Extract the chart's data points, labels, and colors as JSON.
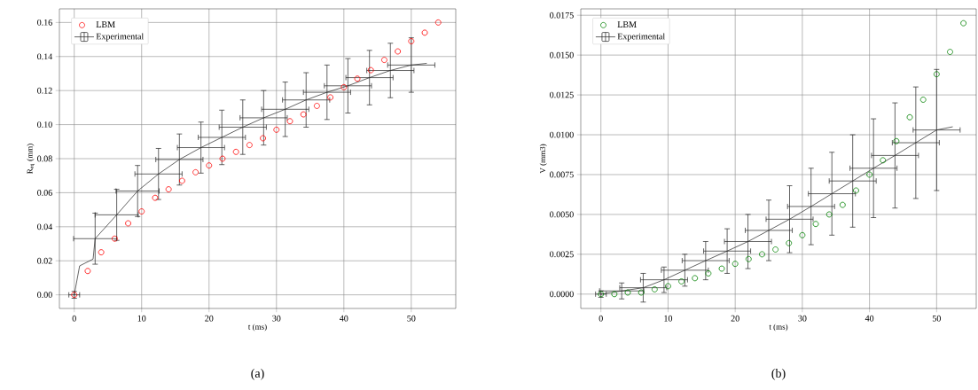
{
  "chart_data": [
    {
      "type": "scatter",
      "xlabel": "t (ms)",
      "ylabel": "R$_{eq}$ (mm)",
      "annotations": [
        "(a)"
      ],
      "grid": true,
      "legend": "top left",
      "xlim": [
        -2.2,
        56.6
      ],
      "ylim": [
        -0.008,
        0.168
      ],
      "xticks": [
        0,
        10,
        20,
        30,
        40,
        50
      ],
      "yticks": [
        {
          "value": 0,
          "label": "0.00"
        },
        {
          "value": 0.02,
          "label": "0.02"
        },
        {
          "value": 0.04,
          "label": "0.04"
        },
        {
          "value": 0.06,
          "label": "0.06"
        },
        {
          "value": 0.08,
          "label": "0.08"
        },
        {
          "value": 0.1,
          "label": "0.10"
        },
        {
          "value": 0.12,
          "label": "0.12"
        },
        {
          "value": 0.14,
          "label": "0.14"
        },
        {
          "value": 0.16,
          "label": "0.16"
        }
      ],
      "series": [
        {
          "name": "LBM",
          "marker": "circle",
          "color": "#ff0000",
          "x": [
            0,
            2,
            4,
            6,
            8,
            10,
            12,
            14,
            16,
            18,
            20,
            22,
            24,
            26,
            28,
            30,
            32,
            34,
            36,
            38,
            40,
            42,
            44,
            46,
            48,
            50,
            52,
            54
          ],
          "values": [
            0,
            0.014,
            0.025,
            0.033,
            0.042,
            0.049,
            0.057,
            0.062,
            0.067,
            0.072,
            0.076,
            0.08,
            0.084,
            0.088,
            0.092,
            0.097,
            0.102,
            0.106,
            0.111,
            0.116,
            0.122,
            0.127,
            0.132,
            0.138,
            0.143,
            0.149,
            0.154,
            0.16
          ]
        },
        {
          "name": "Experimental",
          "type": "line",
          "marker": "none",
          "line_style": "solid",
          "color": "#222222",
          "x": [
            0,
            0.8,
            2.8,
            3.1,
            6.3,
            9.4,
            12.5,
            15.6,
            18.8,
            21.9,
            25.0,
            28.1,
            31.3,
            34.4,
            37.5,
            40.6,
            43.8,
            46.9,
            50.0,
            52.3
          ],
          "values": [
            0,
            0.017,
            0.021,
            0.033,
            0.047,
            0.061,
            0.071,
            0.0795,
            0.0865,
            0.0925,
            0.0985,
            0.104,
            0.109,
            0.1145,
            0.119,
            0.1228,
            0.1276,
            0.1318,
            0.135,
            0.136
          ],
          "errors": [
            0.002,
            null,
            null,
            0.015,
            0.015,
            0.015,
            0.015,
            0.015,
            0.015,
            0.016,
            0.016,
            0.016,
            0.016,
            0.016,
            0.016,
            0.016,
            0.016,
            0.016,
            0.016,
            null
          ],
          "xerrors": [
            0.8,
            null,
            null,
            3.2,
            3.2,
            3.2,
            3.5,
            3.5,
            3.5,
            3.5,
            3.5,
            3.5,
            3.5,
            3.5,
            3.5,
            3.5,
            3.5,
            3.5,
            3.5,
            null
          ]
        }
      ]
    },
    {
      "type": "scatter",
      "xlabel": "t (ms)",
      "ylabel": "V (mm3)",
      "annotations": [
        "(b)"
      ],
      "grid": true,
      "legend": "top left",
      "xlim": [
        -3.0,
        55.9
      ],
      "ylim": [
        -0.0009,
        0.0179
      ],
      "xticks": [
        0,
        10,
        20,
        30,
        40,
        50
      ],
      "yticks": [
        {
          "value": 0,
          "label": "0.0000"
        },
        {
          "value": 0.0025,
          "label": "0.0025"
        },
        {
          "value": 0.005,
          "label": "0.0050"
        },
        {
          "value": 0.0075,
          "label": "0.0075"
        },
        {
          "value": 0.01,
          "label": "0.0100"
        },
        {
          "value": 0.0125,
          "label": "0.0125"
        },
        {
          "value": 0.015,
          "label": "0.0150"
        },
        {
          "value": 0.0175,
          "label": "0.0175"
        }
      ],
      "series": [
        {
          "name": "LBM",
          "marker": "circle",
          "color": "#008000",
          "x": [
            0,
            2,
            4,
            6,
            8,
            10,
            12,
            14,
            16,
            18,
            20,
            22,
            24,
            26,
            28,
            30,
            32,
            34,
            36,
            38,
            40,
            42,
            44,
            46,
            48,
            50,
            52,
            54
          ],
          "values": [
            0,
            0,
            0.0001,
            0.0001,
            0.0003,
            0.0005,
            0.0008,
            0.001,
            0.0013,
            0.0016,
            0.0019,
            0.0022,
            0.0025,
            0.0028,
            0.0032,
            0.0037,
            0.0044,
            0.005,
            0.0056,
            0.0065,
            0.0075,
            0.0084,
            0.0096,
            0.0111,
            0.0122,
            0.0138,
            0.0152,
            0.017
          ]
        },
        {
          "name": "Experimental",
          "type": "line",
          "marker": "none",
          "line_style": "solid",
          "color": "#222222",
          "x": [
            0,
            3.1,
            6.3,
            9.4,
            12.5,
            15.6,
            18.8,
            21.9,
            25.0,
            28.1,
            31.3,
            34.4,
            37.5,
            40.6,
            43.8,
            46.9,
            50.0,
            52.4
          ],
          "values": [
            0,
            0.0002,
            0.0004,
            0.0009,
            0.0015,
            0.0021,
            0.0027,
            0.0033,
            0.004,
            0.0047,
            0.0055,
            0.0063,
            0.0071,
            0.0079,
            0.0087,
            0.0095,
            0.0103,
            0.0105
          ],
          "errors": [
            0.0002,
            0.0005,
            0.0009,
            0.0008,
            0.001,
            0.0012,
            0.0014,
            0.0017,
            0.0019,
            0.0021,
            0.0024,
            0.0026,
            0.0029,
            0.0031,
            0.0033,
            0.0035,
            0.0038,
            null
          ],
          "xerrors": [
            0.8,
            3.3,
            3.5,
            3.5,
            3.5,
            3.5,
            3.5,
            3.5,
            3.5,
            3.5,
            3.5,
            3.5,
            3.5,
            3.5,
            3.5,
            3.5,
            3.5,
            null
          ]
        }
      ]
    }
  ]
}
